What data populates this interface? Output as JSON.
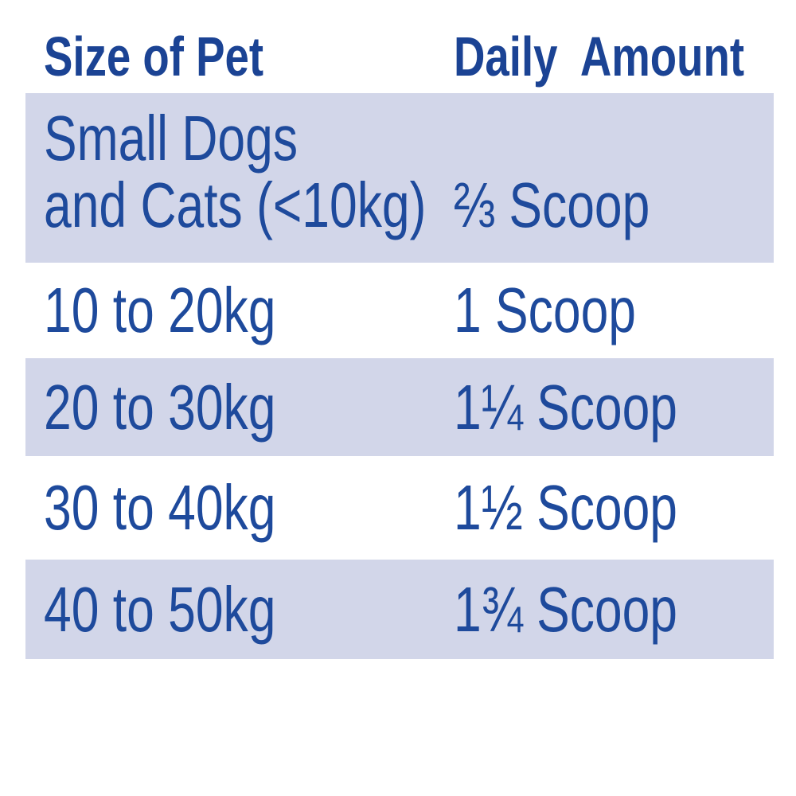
{
  "page": {
    "background": "#ffffff"
  },
  "colors": {
    "header_text": "#1b4394",
    "body_text": "#1e4a9c",
    "row_shade": "#d2d6e9",
    "row_unshaded": "#ffffff"
  },
  "table": {
    "columns": [
      {
        "id": "size",
        "label": "Size of Pet"
      },
      {
        "id": "amount",
        "label": "Daily  Amount"
      }
    ],
    "rows": [
      {
        "size_line1": "Small Dogs",
        "size_line2": "and Cats (<10kg)",
        "amount": "⅔ Scoop",
        "shaded": true
      },
      {
        "size_line1": "10 to 20kg",
        "size_line2": "",
        "amount": "1 Scoop",
        "shaded": false
      },
      {
        "size_line1": "20 to 30kg",
        "size_line2": "",
        "amount": "1¼ Scoop",
        "shaded": true
      },
      {
        "size_line1": "30 to 40kg",
        "size_line2": "",
        "amount": "1½ Scoop",
        "shaded": false
      },
      {
        "size_line1": "40 to 50kg",
        "size_line2": "",
        "amount": "1¾ Scoop",
        "shaded": true
      }
    ]
  }
}
